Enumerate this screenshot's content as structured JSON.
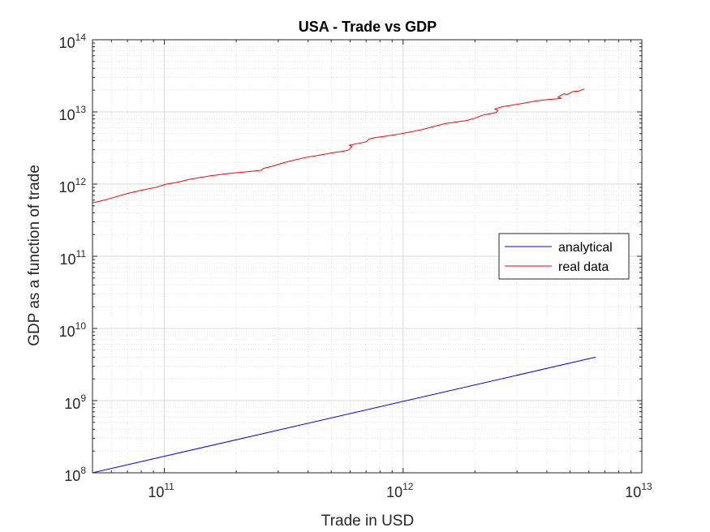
{
  "chart_data": {
    "type": "line",
    "title": "USA - Trade vs GDP",
    "xlabel": "Trade in USD",
    "ylabel": "GDP as a function of trade",
    "xscale": "log",
    "yscale": "log",
    "xlim": [
      50000000000.0,
      10000000000000.0
    ],
    "ylim": [
      100000000.0,
      100000000000000.0
    ],
    "grid": true,
    "minor_grid": true,
    "legend_position": "right",
    "x_ticks": [
      {
        "value": 100000000000.0,
        "base": "10",
        "exp": "11"
      },
      {
        "value": 1000000000000.0,
        "base": "10",
        "exp": "12"
      },
      {
        "value": 10000000000000.0,
        "base": "10",
        "exp": "13"
      }
    ],
    "y_ticks": [
      {
        "value": 100000000.0,
        "base": "10",
        "exp": "8"
      },
      {
        "value": 1000000000.0,
        "base": "10",
        "exp": "9"
      },
      {
        "value": 10000000000.0,
        "base": "10",
        "exp": "10"
      },
      {
        "value": 100000000000.0,
        "base": "10",
        "exp": "11"
      },
      {
        "value": 1000000000000.0,
        "base": "10",
        "exp": "12"
      },
      {
        "value": 10000000000000.0,
        "base": "10",
        "exp": "13"
      },
      {
        "value": 100000000000000.0,
        "base": "10",
        "exp": "14"
      }
    ],
    "series": [
      {
        "name": "analytical",
        "color": "#0000ff",
        "x": [
          50000000000.0,
          6400000000000.0
        ],
        "y": [
          100000000.0,
          4000000000.0
        ]
      },
      {
        "name": "real data",
        "color": "#ff0000",
        "x": [
          50000000000.0,
          56000000000.0,
          62000000000.0,
          70000000000.0,
          80000000000.0,
          92000000000.0,
          102000000000.0,
          112000000000.0,
          130000000000.0,
          155000000000.0,
          185000000000.0,
          220000000000.0,
          255000000000.0,
          260000000000.0,
          280000000000.0,
          320000000000.0,
          380000000000.0,
          440000000000.0,
          500000000000.0,
          560000000000.0,
          590000000000.0,
          610000000000.0,
          595000000000.0,
          620000000000.0,
          660000000000.0,
          700000000000.0,
          720000000000.0,
          760000000000.0,
          840000000000.0,
          950000000000.0,
          1050000000000.0,
          1200000000000.0,
          1350000000000.0,
          1500000000000.0,
          1700000000000.0,
          1850000000000.0,
          2000000000000.0,
          2150000000000.0,
          2300000000000.0,
          2450000000000.0,
          2500000000000.0,
          2420000000000.0,
          2600000000000.0,
          2900000000000.0,
          3200000000000.0,
          3600000000000.0,
          4000000000000.0,
          4400000000000.0,
          4600000000000.0,
          4450000000000.0,
          4700000000000.0,
          4900000000000.0,
          5150000000000.0,
          5450000000000.0,
          5750000000000.0
        ],
        "y": [
          550000000000.0,
          600000000000.0,
          660000000000.0,
          740000000000.0,
          820000000000.0,
          900000000000.0,
          1000000000000.0,
          1050000000000.0,
          1180000000000.0,
          1300000000000.0,
          1400000000000.0,
          1480000000000.0,
          1550000000000.0,
          1650000000000.0,
          1750000000000.0,
          2000000000000.0,
          2300000000000.0,
          2500000000000.0,
          2700000000000.0,
          2850000000000.0,
          2950000000000.0,
          3300000000000.0,
          3450000000000.0,
          3550000000000.0,
          3700000000000.0,
          3850000000000.0,
          4200000000000.0,
          4400000000000.0,
          4600000000000.0,
          4900000000000.0,
          5200000000000.0,
          5700000000000.0,
          6300000000000.0,
          6900000000000.0,
          7300000000000.0,
          7600000000000.0,
          8200000000000.0,
          9000000000000.0,
          9400000000000.0,
          9800000000000.0,
          10500000000000.0,
          11000000000000.0,
          11800000000000.0,
          12500000000000.0,
          13200000000000.0,
          14200000000000.0,
          14800000000000.0,
          15200000000000.0,
          15500000000000.0,
          16000000000000.0,
          17800000000000.0,
          17500000000000.0,
          19200000000000.0,
          19500000000000.0,
          20800000000000.0
        ]
      }
    ]
  }
}
